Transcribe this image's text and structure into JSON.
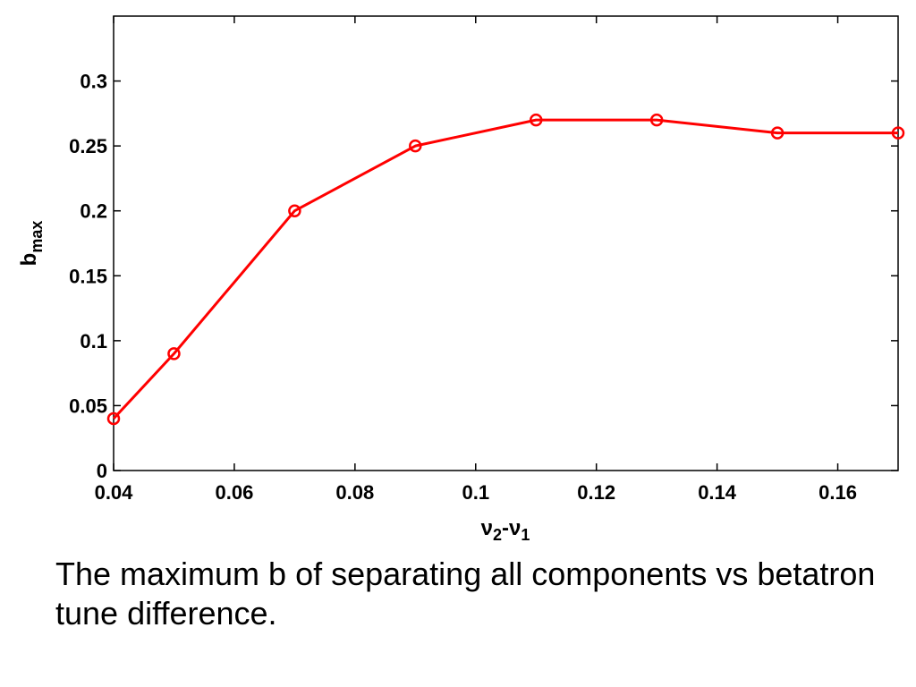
{
  "chart_data": {
    "type": "line",
    "x": [
      0.04,
      0.05,
      0.07,
      0.09,
      0.11,
      0.13,
      0.15,
      0.17
    ],
    "series": [
      {
        "values": [
          0.04,
          0.09,
          0.2,
          0.25,
          0.27,
          0.27,
          0.26,
          0.26
        ]
      }
    ],
    "xlabel": {
      "base": "ν",
      "sub1": "2",
      "mid": "-ν",
      "sub2": "1"
    },
    "ylabel": {
      "base": "b",
      "sub": "max"
    },
    "xlim": [
      0.04,
      0.17
    ],
    "ylim": [
      0,
      0.35
    ],
    "xticks": [
      "0.04",
      "0.06",
      "0.08",
      "0.1",
      "0.12",
      "0.14",
      "0.16"
    ],
    "yticks": [
      "0",
      "0.05",
      "0.1",
      "0.15",
      "0.2",
      "0.25",
      "0.3"
    ],
    "grid": false,
    "marker": "circle",
    "line_color": "#ff0000"
  },
  "caption": "The maximum b of separating all components vs betatron tune difference."
}
